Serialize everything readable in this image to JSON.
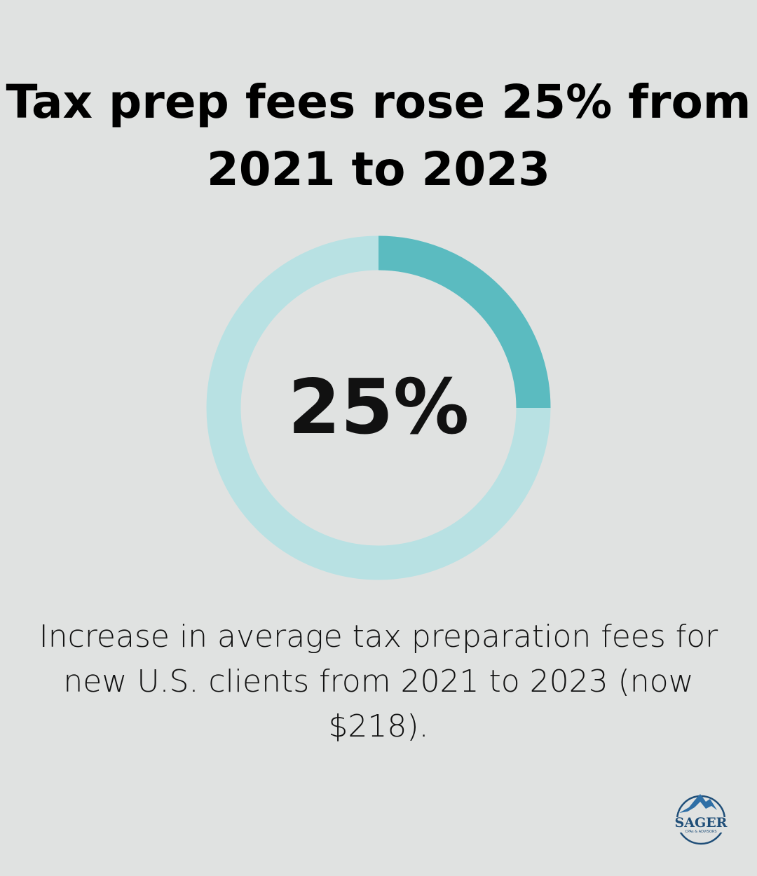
{
  "title": "Tax prep fees rose 25% from 2021 to 2023",
  "caption": "Increase in average tax preparation fees for new U.S. clients from 2021 to 2023 (now $218).",
  "logo": {
    "name": "SAGER",
    "tagline": "CPAs & ADVISORS"
  },
  "chart_data": {
    "type": "pie",
    "variant": "donut",
    "center_label": "25%",
    "values": [
      25,
      75
    ],
    "colors": [
      "#5bbbc0",
      "#b8e1e3"
    ]
  },
  "colors": {
    "background": "#e0e2e1",
    "logo": "#1f4e78"
  }
}
